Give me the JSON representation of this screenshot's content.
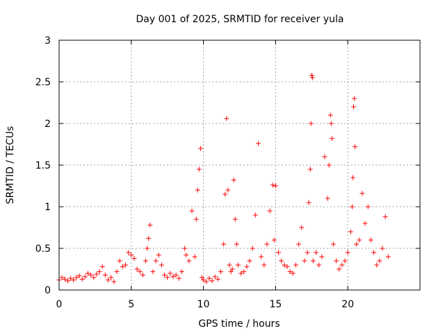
{
  "chart_data": {
    "type": "scatter",
    "title": "Day 001 of 2025, SRMTID for receiver yula",
    "xlabel": "GPS time / hours",
    "ylabel": "SRMTID / TECUs",
    "xlim": [
      0,
      25
    ],
    "ylim": [
      0,
      3
    ],
    "grid": true,
    "marker": "+",
    "color": "#ff0000",
    "x_ticks": [
      {
        "value": 0,
        "label": "0"
      },
      {
        "value": 5,
        "label": "5"
      },
      {
        "value": 10,
        "label": "10"
      },
      {
        "value": 15,
        "label": "15"
      },
      {
        "value": 20,
        "label": "20"
      }
    ],
    "y_ticks": [
      {
        "value": 0,
        "label": "0"
      },
      {
        "value": 0.5,
        "label": "0.5"
      },
      {
        "value": 1,
        "label": "1"
      },
      {
        "value": 1.5,
        "label": "1.5"
      },
      {
        "value": 2,
        "label": "2"
      },
      {
        "value": 2.5,
        "label": "2.5"
      },
      {
        "value": 3,
        "label": "3"
      }
    ],
    "series": [
      {
        "name": "SRMTID",
        "x": [
          0.0,
          0.2,
          0.4,
          0.6,
          0.8,
          1.0,
          1.2,
          1.4,
          1.6,
          1.8,
          2.0,
          2.2,
          2.4,
          2.6,
          2.8,
          3.0,
          3.2,
          3.4,
          3.6,
          3.8,
          4.0,
          4.2,
          4.4,
          4.6,
          4.8,
          5.0,
          5.2,
          5.4,
          5.6,
          5.8,
          6.0,
          6.1,
          6.2,
          6.3,
          6.5,
          6.7,
          6.9,
          7.1,
          7.3,
          7.5,
          7.7,
          7.9,
          8.1,
          8.3,
          8.5,
          8.7,
          8.8,
          9.0,
          9.2,
          9.4,
          9.5,
          9.6,
          9.7,
          9.8,
          9.9,
          10.0,
          10.2,
          10.4,
          10.6,
          10.8,
          11.0,
          11.2,
          11.4,
          11.5,
          11.6,
          11.7,
          11.8,
          11.9,
          12.0,
          12.1,
          12.2,
          12.3,
          12.4,
          12.6,
          12.8,
          13.0,
          13.2,
          13.4,
          13.6,
          13.8,
          14.0,
          14.2,
          14.4,
          14.6,
          14.8,
          14.9,
          15.0,
          15.2,
          15.4,
          15.6,
          15.8,
          16.0,
          16.2,
          16.4,
          16.6,
          16.8,
          17.0,
          17.2,
          17.3,
          17.4,
          17.45,
          17.5,
          17.55,
          17.6,
          17.8,
          18.0,
          18.2,
          18.4,
          18.6,
          18.7,
          18.8,
          18.85,
          18.9,
          19.0,
          19.2,
          19.4,
          19.6,
          19.8,
          20.0,
          20.2,
          20.3,
          20.35,
          20.4,
          20.45,
          20.5,
          20.6,
          20.8,
          21.0,
          21.2,
          21.4,
          21.6,
          21.8,
          22.0,
          22.2,
          22.4,
          22.6,
          22.8
        ],
        "y": [
          0.12,
          0.15,
          0.13,
          0.11,
          0.14,
          0.12,
          0.15,
          0.17,
          0.13,
          0.16,
          0.2,
          0.18,
          0.15,
          0.19,
          0.22,
          0.28,
          0.18,
          0.12,
          0.15,
          0.1,
          0.22,
          0.35,
          0.28,
          0.3,
          0.45,
          0.42,
          0.38,
          0.25,
          0.22,
          0.18,
          0.35,
          0.5,
          0.62,
          0.78,
          0.22,
          0.35,
          0.42,
          0.3,
          0.18,
          0.15,
          0.2,
          0.16,
          0.18,
          0.14,
          0.22,
          0.5,
          0.42,
          0.35,
          0.95,
          0.4,
          0.85,
          1.2,
          1.45,
          1.7,
          0.15,
          0.12,
          0.1,
          0.14,
          0.11,
          0.16,
          0.13,
          0.22,
          0.55,
          1.15,
          2.06,
          1.2,
          0.3,
          0.22,
          0.25,
          1.32,
          0.85,
          0.55,
          0.3,
          0.2,
          0.22,
          0.28,
          0.35,
          0.5,
          0.9,
          1.76,
          0.4,
          0.3,
          0.55,
          0.95,
          1.26,
          0.6,
          1.25,
          0.45,
          0.35,
          0.3,
          0.28,
          0.22,
          0.2,
          0.3,
          0.55,
          0.75,
          0.35,
          0.45,
          1.05,
          1.45,
          2.0,
          2.58,
          2.55,
          0.35,
          0.45,
          0.3,
          0.4,
          1.6,
          1.1,
          1.5,
          2.1,
          2.0,
          1.82,
          0.55,
          0.35,
          0.25,
          0.3,
          0.35,
          0.45,
          0.7,
          1.0,
          1.35,
          2.2,
          2.3,
          1.72,
          0.55,
          0.6,
          1.16,
          0.8,
          1.0,
          0.6,
          0.45,
          0.3,
          0.35,
          0.5,
          0.88,
          0.4
        ]
      }
    ]
  }
}
